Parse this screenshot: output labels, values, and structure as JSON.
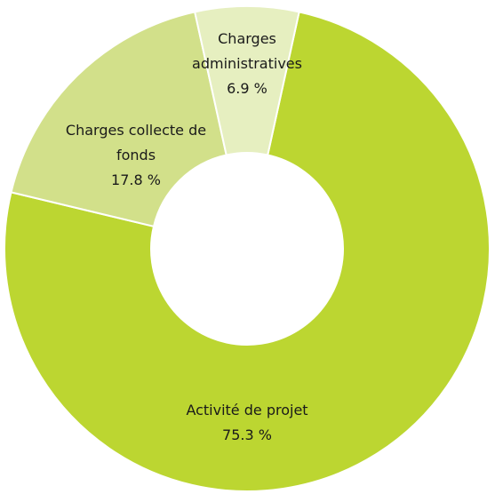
{
  "chart_data": {
    "type": "pie",
    "categories": [
      "Activité de projet",
      "Charges collecte de fonds",
      "Charges administratives"
    ],
    "values": [
      75.3,
      17.8,
      6.9
    ],
    "value_labels": [
      "75.3 %",
      "17.8 %",
      "6.9 %"
    ],
    "colors": [
      "#bcd631",
      "#d2e08a",
      "#e6efc0"
    ]
  }
}
